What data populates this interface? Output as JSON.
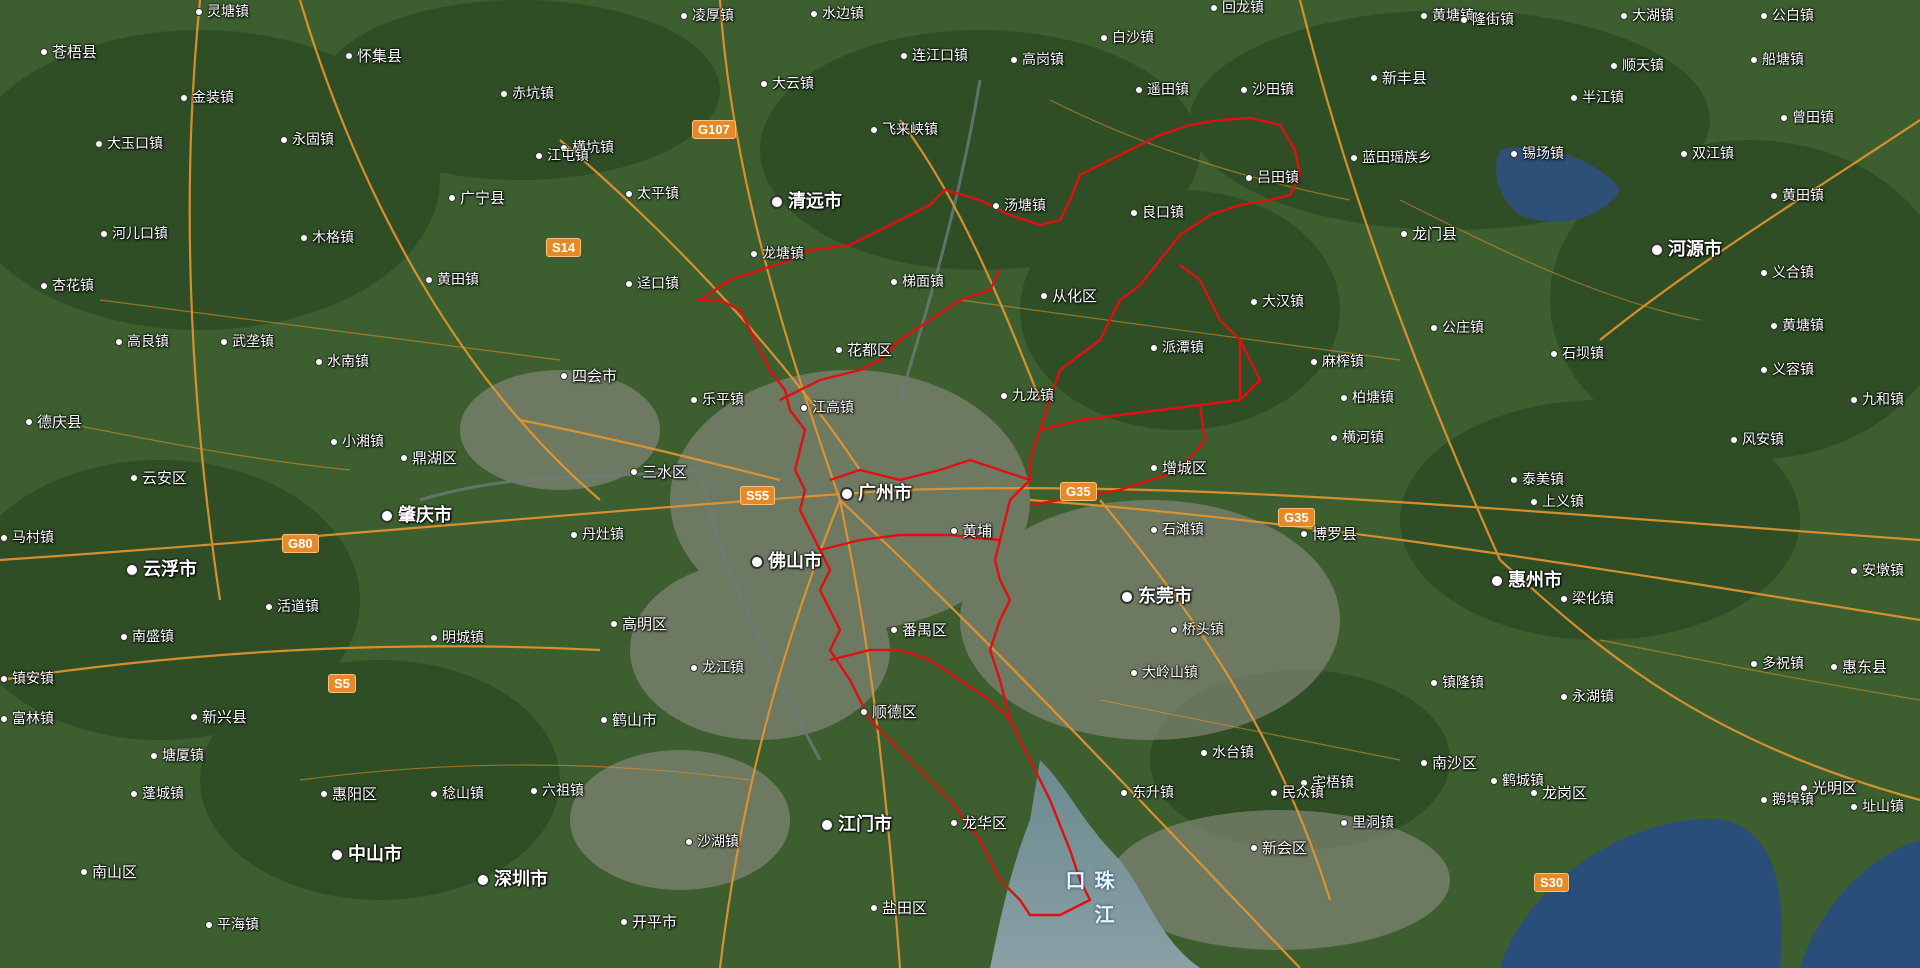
{
  "map": {
    "places": [
      {
        "name": "灵塘镇",
        "kind": "town"
      },
      {
        "name": "凌厚镇",
        "kind": "town"
      },
      {
        "name": "水边镇",
        "kind": "town"
      },
      {
        "name": "回龙镇",
        "kind": "town"
      },
      {
        "name": "黄塘镇",
        "kind": "town"
      },
      {
        "name": "隆街镇",
        "kind": "town"
      },
      {
        "name": "大湖镇",
        "kind": "town"
      },
      {
        "name": "公白镇",
        "kind": "town"
      },
      {
        "name": "苍梧县",
        "kind": "county"
      },
      {
        "name": "怀集县",
        "kind": "county"
      },
      {
        "name": "连江口镇",
        "kind": "town"
      },
      {
        "name": "白沙镇",
        "kind": "town"
      },
      {
        "name": "高岗镇",
        "kind": "town"
      },
      {
        "name": "金装镇",
        "kind": "town"
      },
      {
        "name": "赤坑镇",
        "kind": "town"
      },
      {
        "name": "大云镇",
        "kind": "town"
      },
      {
        "name": "遥田镇",
        "kind": "town"
      },
      {
        "name": "沙田镇",
        "kind": "town"
      },
      {
        "name": "新丰县",
        "kind": "county"
      },
      {
        "name": "半江镇",
        "kind": "town"
      },
      {
        "name": "顺天镇",
        "kind": "town"
      },
      {
        "name": "船塘镇",
        "kind": "town"
      },
      {
        "name": "大玉口镇",
        "kind": "town"
      },
      {
        "name": "永固镇",
        "kind": "town"
      },
      {
        "name": "飞来峡镇",
        "kind": "town"
      },
      {
        "name": "横坑镇",
        "kind": "town"
      },
      {
        "name": "曾田镇",
        "kind": "town"
      },
      {
        "name": "江屯镇",
        "kind": "town"
      },
      {
        "name": "蓝田瑶族乡",
        "kind": "town"
      },
      {
        "name": "锡场镇",
        "kind": "town"
      },
      {
        "name": "双江镇",
        "kind": "town"
      },
      {
        "name": "广宁县",
        "kind": "county"
      },
      {
        "name": "太平镇",
        "kind": "town"
      },
      {
        "name": "清远市",
        "kind": "city"
      },
      {
        "name": "汤塘镇",
        "kind": "town"
      },
      {
        "name": "吕田镇",
        "kind": "town"
      },
      {
        "name": "良口镇",
        "kind": "town"
      },
      {
        "name": "黄田镇",
        "kind": "town"
      },
      {
        "name": "河儿口镇",
        "kind": "town"
      },
      {
        "name": "木格镇",
        "kind": "town"
      },
      {
        "name": "龙门县",
        "kind": "county"
      },
      {
        "name": "龙塘镇",
        "kind": "town"
      },
      {
        "name": "河源市",
        "kind": "city"
      },
      {
        "name": "杏花镇",
        "kind": "town"
      },
      {
        "name": "黄田镇",
        "kind": "town"
      },
      {
        "name": "迳口镇",
        "kind": "town"
      },
      {
        "name": "梯面镇",
        "kind": "town"
      },
      {
        "name": "从化区",
        "kind": "district"
      },
      {
        "name": "义合镇",
        "kind": "town"
      },
      {
        "name": "黄塘镇",
        "kind": "town"
      },
      {
        "name": "高良镇",
        "kind": "town"
      },
      {
        "name": "武垄镇",
        "kind": "town"
      },
      {
        "name": "大汉镇",
        "kind": "town"
      },
      {
        "name": "公庄镇",
        "kind": "town"
      },
      {
        "name": "水南镇",
        "kind": "town"
      },
      {
        "name": "花都区",
        "kind": "district"
      },
      {
        "name": "派潭镇",
        "kind": "town"
      },
      {
        "name": "麻榨镇",
        "kind": "town"
      },
      {
        "name": "石坝镇",
        "kind": "town"
      },
      {
        "name": "义容镇",
        "kind": "town"
      },
      {
        "name": "四会市",
        "kind": "county"
      },
      {
        "name": "乐平镇",
        "kind": "town"
      },
      {
        "name": "江高镇",
        "kind": "town"
      },
      {
        "name": "九龙镇",
        "kind": "town"
      },
      {
        "name": "柏塘镇",
        "kind": "town"
      },
      {
        "name": "九和镇",
        "kind": "town"
      },
      {
        "name": "德庆县",
        "kind": "county"
      },
      {
        "name": "小湘镇",
        "kind": "town"
      },
      {
        "name": "横河镇",
        "kind": "town"
      },
      {
        "name": "风安镇",
        "kind": "town"
      },
      {
        "name": "云安区",
        "kind": "district"
      },
      {
        "name": "鼎湖区",
        "kind": "district"
      },
      {
        "name": "三水区",
        "kind": "district"
      },
      {
        "name": "增城区",
        "kind": "district"
      },
      {
        "name": "泰美镇",
        "kind": "town"
      },
      {
        "name": "肇庆市",
        "kind": "city"
      },
      {
        "name": "广州市",
        "kind": "city"
      },
      {
        "name": "上义镇",
        "kind": "town"
      },
      {
        "name": "马村镇",
        "kind": "town"
      },
      {
        "name": "丹灶镇",
        "kind": "town"
      },
      {
        "name": "黄埔",
        "kind": "district"
      },
      {
        "name": "石滩镇",
        "kind": "town"
      },
      {
        "name": "博罗县",
        "kind": "county"
      },
      {
        "name": "云浮市",
        "kind": "city"
      },
      {
        "name": "佛山市",
        "kind": "city"
      },
      {
        "name": "惠州市",
        "kind": "city"
      },
      {
        "name": "安墩镇",
        "kind": "town"
      },
      {
        "name": "活道镇",
        "kind": "town"
      },
      {
        "name": "东莞市",
        "kind": "city"
      },
      {
        "name": "梁化镇",
        "kind": "town"
      },
      {
        "name": "南盛镇",
        "kind": "town"
      },
      {
        "name": "高明区",
        "kind": "district"
      },
      {
        "name": "明城镇",
        "kind": "town"
      },
      {
        "name": "桥头镇",
        "kind": "town"
      },
      {
        "name": "多祝镇",
        "kind": "town"
      },
      {
        "name": "镇安镇",
        "kind": "town"
      },
      {
        "name": "龙江镇",
        "kind": "town"
      },
      {
        "name": "番禺区",
        "kind": "district"
      },
      {
        "name": "大岭山镇",
        "kind": "town"
      },
      {
        "name": "镇隆镇",
        "kind": "town"
      },
      {
        "name": "永湖镇",
        "kind": "town"
      },
      {
        "name": "惠东县",
        "kind": "county"
      },
      {
        "name": "富林镇",
        "kind": "town"
      },
      {
        "name": "新兴县",
        "kind": "county"
      },
      {
        "name": "鹤山市",
        "kind": "county"
      },
      {
        "name": "顺德区",
        "kind": "district"
      },
      {
        "name": "南沙区",
        "kind": "district"
      },
      {
        "name": "水台镇",
        "kind": "town"
      },
      {
        "name": "宅梧镇",
        "kind": "town"
      },
      {
        "name": "鹤城镇",
        "kind": "town"
      },
      {
        "name": "光明区",
        "kind": "district"
      },
      {
        "name": "塘厦镇",
        "kind": "town"
      },
      {
        "name": "惠阳区",
        "kind": "district"
      },
      {
        "name": "稔山镇",
        "kind": "town"
      },
      {
        "name": "六祖镇",
        "kind": "town"
      },
      {
        "name": "东升镇",
        "kind": "town"
      },
      {
        "name": "民众镇",
        "kind": "town"
      },
      {
        "name": "龙岗区",
        "kind": "district"
      },
      {
        "name": "鹅埠镇",
        "kind": "town"
      },
      {
        "name": "蓬城镇",
        "kind": "town"
      },
      {
        "name": "江门市",
        "kind": "city"
      },
      {
        "name": "龙华区",
        "kind": "district"
      },
      {
        "name": "里洞镇",
        "kind": "town"
      },
      {
        "name": "址山镇",
        "kind": "town"
      },
      {
        "name": "中山市",
        "kind": "city"
      },
      {
        "name": "沙湖镇",
        "kind": "town"
      },
      {
        "name": "新会区",
        "kind": "district"
      },
      {
        "name": "南山区",
        "kind": "district"
      },
      {
        "name": "深圳市",
        "kind": "city"
      },
      {
        "name": "盐田区",
        "kind": "district"
      },
      {
        "name": "平海镇",
        "kind": "town"
      },
      {
        "name": "开平市",
        "kind": "county"
      }
    ],
    "road_shields": [
      "G107",
      "S14",
      "S55",
      "G35",
      "G35",
      "G80",
      "S5",
      "S30"
    ],
    "river_label": "珠江口",
    "boundary_color": "#e01010",
    "road_color": "#f0a040"
  }
}
